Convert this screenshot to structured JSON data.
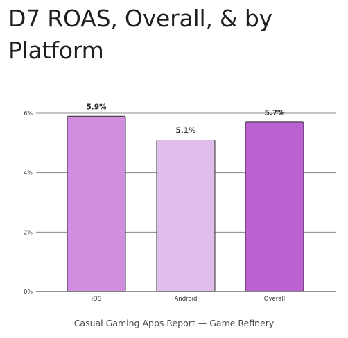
{
  "title": "D7 ROAS, Overall, & by Platform",
  "caption": "Casual Gaming Apps Report — Game Refinery",
  "chart_data": {
    "type": "bar",
    "categories": [
      "iOS",
      "Android",
      "Overall"
    ],
    "values": [
      5.9,
      5.1,
      5.7
    ],
    "data_labels": [
      "5.9%",
      "5.1%",
      "5.7%"
    ],
    "bar_colors": [
      "#d08ee0",
      "#e0bdea",
      "#bb62d0"
    ],
    "bar_stroke": "#2e2e2e",
    "ylim": [
      0,
      6
    ],
    "yticks": [
      0,
      2,
      4,
      6
    ],
    "ytick_labels": [
      "0%",
      "2%",
      "4%",
      "6%"
    ],
    "grid": true,
    "xlabel": "",
    "ylabel": ""
  }
}
